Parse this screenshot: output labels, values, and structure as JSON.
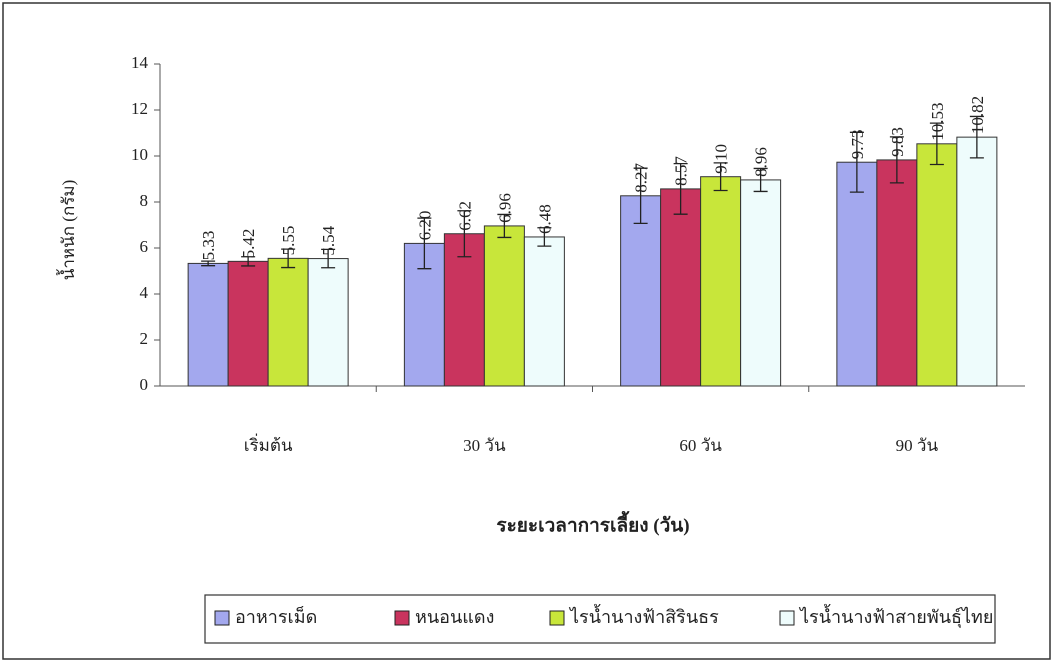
{
  "chart_data": {
    "type": "bar",
    "x_label": "ระยะเวลาการเลี้ยง (วัน)",
    "y_label": "น้ำหนัก (กรัม)",
    "categories": [
      "เริ่มต้น",
      "30 วัน",
      "60 วัน",
      "90 วัน"
    ],
    "series": [
      {
        "name": "อาหารเม็ด",
        "color": "#a3a8ee",
        "values": [
          5.33,
          6.2,
          8.27,
          9.73
        ],
        "value_labels": [
          "5.33",
          "6.20",
          "8.27",
          "9.73"
        ],
        "errors": [
          0.1,
          1.1,
          1.2,
          1.3
        ]
      },
      {
        "name": "หนอนแดง",
        "color": "#c9345e",
        "values": [
          5.42,
          6.62,
          8.57,
          9.83
        ],
        "value_labels": [
          "5.42",
          "6.62",
          "8.57",
          "9.83"
        ],
        "errors": [
          0.2,
          1.0,
          1.1,
          1.0
        ]
      },
      {
        "name": "ไรน้ำนางฟ้าสิรินธร",
        "color": "#c8e63a",
        "values": [
          5.55,
          6.96,
          9.1,
          10.53
        ],
        "value_labels": [
          "5.55",
          "6.96",
          "9.10",
          "10.53"
        ],
        "errors": [
          0.4,
          0.5,
          0.6,
          0.9
        ]
      },
      {
        "name": "ไรน้ำนางฟ้าสายพันธุ์ไทย",
        "color": "#eefcfc",
        "values": [
          5.54,
          6.48,
          8.96,
          10.82
        ],
        "value_labels": [
          "5.54",
          "6.48",
          "8.96",
          "10.82"
        ],
        "errors": [
          0.4,
          0.4,
          0.5,
          0.9
        ]
      }
    ],
    "ylim": [
      0,
      14
    ],
    "yticks": [
      0,
      2,
      4,
      6,
      8,
      10,
      12,
      14
    ],
    "grid": false,
    "legend": "bottom"
  }
}
